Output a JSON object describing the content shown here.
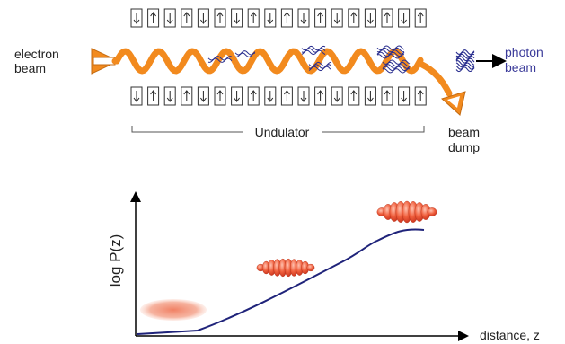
{
  "diagram": {
    "electron_beam": [
      "electron",
      "beam"
    ],
    "photon_beam": [
      "photon",
      "beam"
    ],
    "undulator": "Undulator",
    "beam_dump": [
      "beam",
      "dump"
    ]
  },
  "plot": {
    "ylabel": "log P(z)",
    "xlabel": "distance, z"
  },
  "colors": {
    "electron_path": "#f28a1e",
    "photon": "#2a2f8f",
    "photon_label": "#3b3b9a",
    "growth_curve": "#1f237a",
    "magnet_stroke": "#333333"
  },
  "magnet_directions_top": [
    "down",
    "up",
    "down",
    "up",
    "down",
    "up",
    "down",
    "up",
    "down",
    "up",
    "down",
    "up",
    "down",
    "up",
    "down",
    "up",
    "down",
    "up"
  ],
  "magnet_directions_bottom": [
    "down",
    "up",
    "down",
    "up",
    "down",
    "up",
    "down",
    "up",
    "down",
    "up",
    "down",
    "up",
    "down",
    "up",
    "down",
    "up",
    "down",
    "up"
  ]
}
